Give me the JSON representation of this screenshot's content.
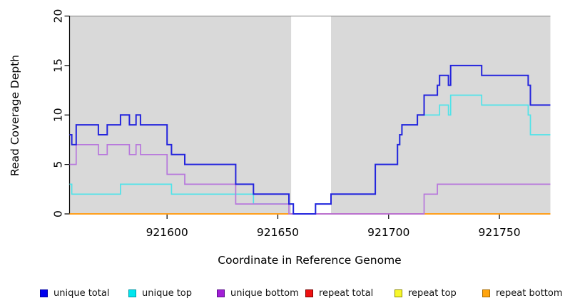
{
  "chart_data": {
    "type": "line",
    "subtype": "step",
    "title": "",
    "xlabel": "Coordinate in Reference Genome",
    "ylabel": "Read Coverage Depth",
    "xlim": [
      921556,
      921773
    ],
    "ylim": [
      0,
      20
    ],
    "xticks": {
      "values": [
        921600,
        921650,
        921700,
        921750
      ],
      "labels": [
        "921600",
        "921650",
        "921700",
        "921750"
      ]
    },
    "yticks": {
      "values": [
        0,
        5,
        10,
        15,
        20
      ],
      "labels": [
        "0",
        "5",
        "10",
        "15",
        "20"
      ]
    },
    "grid": false,
    "legend_position": "bottom",
    "plot_bg_color": "#d9d9d9",
    "unshaded_region": {
      "x0": 921656,
      "x1": 921674,
      "color": "#ffffff"
    },
    "render_order": [
      "repeat_top",
      "repeat_total",
      "repeat_bottom",
      "unique_top",
      "unique_bottom",
      "unique_total"
    ],
    "series": [
      {
        "key": "unique_total",
        "name": "unique total",
        "color": "#2424dd",
        "legend_fill": "#0000ee",
        "legend_border": "#0000a6",
        "width": 2,
        "segments": [
          [
            [
              921556,
              8
            ],
            [
              921557,
              7
            ],
            [
              921559,
              9
            ],
            [
              921569,
              8
            ],
            [
              921573,
              9
            ],
            [
              921579,
              10
            ],
            [
              921583,
              9
            ],
            [
              921586,
              10
            ],
            [
              921588,
              9
            ],
            [
              921600,
              7
            ],
            [
              921602,
              6
            ],
            [
              921608,
              5
            ],
            [
              921631,
              3
            ],
            [
              921639,
              2
            ],
            [
              921655,
              1
            ],
            [
              921657,
              0
            ],
            [
              921667,
              1
            ],
            [
              921674,
              2
            ],
            [
              921694,
              5
            ],
            [
              921704,
              7
            ],
            [
              921705,
              8
            ],
            [
              921706,
              9
            ],
            [
              921713,
              10
            ],
            [
              921716,
              12
            ],
            [
              921722,
              13
            ],
            [
              921723,
              14
            ],
            [
              921727,
              13
            ],
            [
              921728,
              15
            ],
            [
              921742,
              14
            ],
            [
              921763,
              13
            ],
            [
              921764,
              11
            ],
            [
              921773,
              11
            ]
          ]
        ]
      },
      {
        "key": "unique_top",
        "name": "unique top",
        "color": "#4fe3e9",
        "legend_fill": "#00e6ee",
        "legend_border": "#009aa8",
        "width": 1.7,
        "segments": [
          [
            [
              921556,
              3
            ],
            [
              921557,
              2
            ],
            [
              921579,
              3
            ],
            [
              921602,
              2
            ],
            [
              921639,
              1
            ],
            [
              921657,
              0
            ],
            [
              921667,
              1
            ],
            [
              921674,
              2
            ],
            [
              921694,
              5
            ],
            [
              921704,
              7
            ],
            [
              921705,
              8
            ],
            [
              921706,
              9
            ],
            [
              921713,
              10
            ],
            [
              921723,
              11
            ],
            [
              921727,
              10
            ],
            [
              921728,
              12
            ],
            [
              921742,
              11
            ],
            [
              921763,
              10
            ],
            [
              921764,
              8
            ],
            [
              921773,
              8
            ]
          ]
        ]
      },
      {
        "key": "unique_bottom",
        "name": "unique bottom",
        "color": "#b777dc",
        "legend_fill": "#a21fd6",
        "legend_border": "#5e0f8e",
        "width": 1.7,
        "segments": [
          [
            [
              921556,
              5
            ],
            [
              921559,
              7
            ],
            [
              921569,
              6
            ],
            [
              921573,
              7
            ],
            [
              921583,
              6
            ],
            [
              921586,
              7
            ],
            [
              921588,
              6
            ],
            [
              921600,
              4
            ],
            [
              921608,
              3
            ],
            [
              921631,
              1
            ],
            [
              921655,
              0
            ],
            [
              921716,
              2
            ],
            [
              921722,
              3
            ],
            [
              921773,
              3
            ]
          ]
        ]
      },
      {
        "key": "repeat_total",
        "name": "repeat total",
        "color": "#cc4466",
        "legend_fill": "#ee1111",
        "legend_border": "#7a0000",
        "width": 2,
        "segments": [
          [
            [
              921556,
              0
            ],
            [
              921773,
              0
            ]
          ]
        ]
      },
      {
        "key": "repeat_top",
        "name": "repeat top",
        "color": "#eded2a",
        "legend_fill": "#f7f72c",
        "legend_border": "#8e8e00",
        "width": 2,
        "segments": [
          [
            [
              921556,
              0
            ],
            [
              921773,
              0
            ]
          ]
        ]
      },
      {
        "key": "repeat_bottom",
        "name": "repeat bottom",
        "color": "#ff9e1b",
        "legend_fill": "#ffa40e",
        "legend_border": "#a86a00",
        "width": 2,
        "segments": [
          [
            [
              921556,
              0
            ],
            [
              921656,
              0
            ]
          ],
          [
            [
              921716,
              0
            ],
            [
              921773,
              0
            ]
          ]
        ]
      }
    ]
  }
}
